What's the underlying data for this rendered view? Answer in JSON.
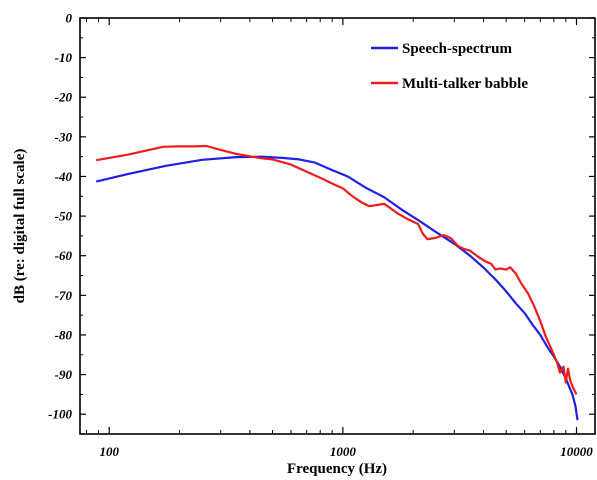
{
  "chart_data": {
    "type": "line",
    "title": "",
    "xlabel": "Frequency (Hz)",
    "ylabel": "dB (re: digital full scale)",
    "xscale": "log",
    "xlim": [
      75,
      12000
    ],
    "ylim": [
      -105,
      0
    ],
    "x_ticks": [
      100,
      1000,
      10000
    ],
    "x_tick_labels": [
      "100",
      "1000",
      "10000"
    ],
    "y_ticks": [
      0,
      -10,
      -20,
      -30,
      -40,
      -50,
      -60,
      -70,
      -80,
      -90,
      -100
    ],
    "y_tick_labels": [
      "0",
      "-10",
      "-20",
      "-30",
      "-40",
      "-50",
      "-60",
      "-70",
      "-80",
      "-90",
      "-100"
    ],
    "grid": false,
    "legend_position": "top-right",
    "series": [
      {
        "name": "Speech-spectrum",
        "color": "#1f1fe6",
        "x": [
          88,
          120,
          175,
          250,
          350,
          450,
          550,
          650,
          760,
          900,
          1050,
          1250,
          1500,
          1800,
          2100,
          2500,
          3000,
          3500,
          4000,
          4500,
          5000,
          5500,
          6000,
          6500,
          7000,
          7500,
          8000,
          8500,
          9000,
          9300,
          9600,
          9900,
          10100
        ],
        "y": [
          -41.3,
          -39.4,
          -37.3,
          -35.8,
          -35.1,
          -35.0,
          -35.3,
          -35.7,
          -36.5,
          -38.4,
          -40.0,
          -42.8,
          -45.2,
          -48.5,
          -51.0,
          -54.0,
          -57.0,
          -60.0,
          -63.0,
          -66.0,
          -69.0,
          -72.0,
          -74.5,
          -77.5,
          -80.0,
          -83.0,
          -85.5,
          -88.0,
          -91.0,
          -93.0,
          -95.0,
          -98.0,
          -101.5
        ]
      },
      {
        "name": "Multi-talker babble",
        "color": "#ee1c1c",
        "x": [
          88,
          120,
          170,
          200,
          230,
          260,
          300,
          350,
          400,
          450,
          500,
          600,
          700,
          800,
          900,
          1000,
          1100,
          1200,
          1300,
          1400,
          1500,
          1600,
          1700,
          1900,
          2100,
          2200,
          2300,
          2500,
          2700,
          2900,
          3100,
          3300,
          3500,
          3800,
          4100,
          4300,
          4500,
          4700,
          5000,
          5200,
          5500,
          5800,
          6200,
          6600,
          7000,
          7400,
          7800,
          8200,
          8500,
          8800,
          9000,
          9200,
          9400,
          9700,
          10000
        ],
        "y": [
          -35.9,
          -34.5,
          -32.5,
          -32.4,
          -32.4,
          -32.3,
          -33.3,
          -34.3,
          -34.9,
          -35.4,
          -35.7,
          -37.0,
          -38.8,
          -40.3,
          -41.8,
          -43.0,
          -45.0,
          -46.5,
          -47.5,
          -47.2,
          -46.9,
          -48.0,
          -49.2,
          -50.8,
          -52.0,
          -54.5,
          -55.8,
          -55.5,
          -54.8,
          -55.6,
          -57.5,
          -58.3,
          -58.7,
          -60.3,
          -61.5,
          -62.0,
          -63.5,
          -63.2,
          -63.5,
          -62.9,
          -64.5,
          -67.0,
          -69.5,
          -72.8,
          -76.5,
          -80.5,
          -83.5,
          -86.5,
          -89.5,
          -88.0,
          -92.0,
          -88.5,
          -91.5,
          -93.5,
          -95.0
        ]
      }
    ]
  }
}
